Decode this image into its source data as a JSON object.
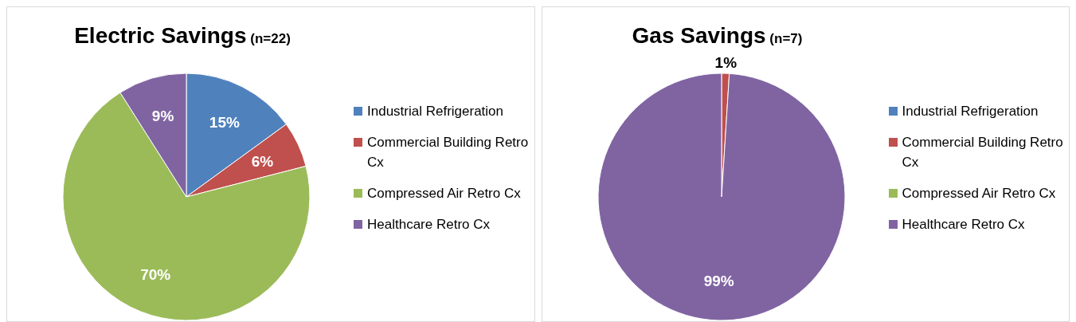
{
  "chart_data": [
    {
      "type": "pie",
      "title": "Electric Savings",
      "subtitle": "(n=22)",
      "categories": [
        "Industrial Refrigeration",
        "Commercial Building Retro Cx",
        "Compressed Air Retro Cx",
        "Healthcare Retro Cx"
      ],
      "values": [
        15,
        6,
        70,
        9
      ],
      "value_labels": [
        "15%",
        "6%",
        "70%",
        "9%"
      ],
      "colors": [
        "#4f81bd",
        "#c0504d",
        "#9bbb59",
        "#8064a2"
      ],
      "legend": "right"
    },
    {
      "type": "pie",
      "title": "Gas Savings",
      "subtitle": "(n=7)",
      "categories": [
        "Industrial Refrigeration",
        "Commercial Building Retro Cx",
        "Compressed Air Retro Cx",
        "Healthcare Retro Cx"
      ],
      "values": [
        0,
        1,
        0,
        99
      ],
      "value_labels": [
        null,
        "1%",
        null,
        "99%"
      ],
      "colors": [
        "#4f81bd",
        "#c0504d",
        "#9bbb59",
        "#8064a2"
      ],
      "legend": "right"
    }
  ]
}
